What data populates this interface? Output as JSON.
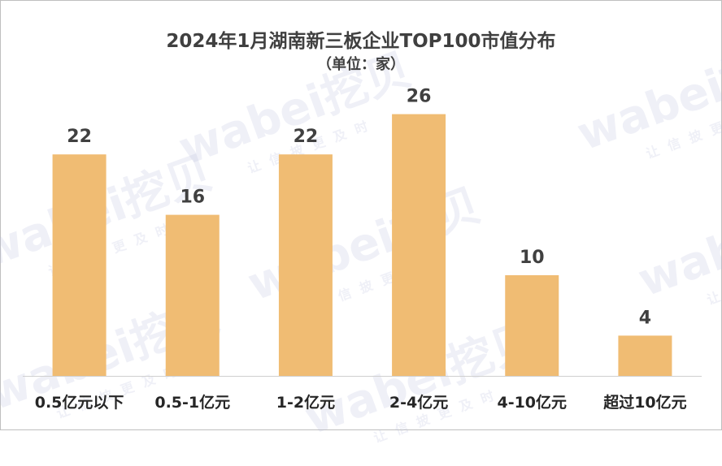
{
  "chart_data": {
    "type": "bar",
    "title": "2024年1月湖南新三板企业TOP100市值分布",
    "subtitle": "（单位：家）",
    "categories": [
      "0.5亿元以下",
      "0.5-1亿元",
      "1-2亿元",
      "2-4亿元",
      "4-10亿元",
      "超过10亿元"
    ],
    "values": [
      22,
      16,
      22,
      26,
      10,
      4
    ],
    "ylim": [
      0,
      30
    ],
    "grid": false,
    "bar_color": "#F0BC73"
  },
  "watermark": {
    "brand": "wabei挖贝",
    "tagline": "让信披更及时"
  }
}
